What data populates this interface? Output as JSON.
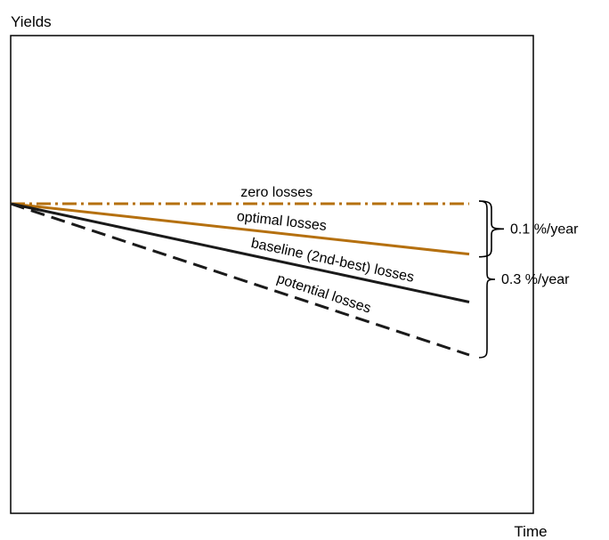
{
  "chart_data": {
    "type": "line",
    "ylabel": "Yields",
    "xlabel": "Time",
    "series": [
      {
        "name": "zero losses",
        "key": "zero",
        "color": "#B5700F",
        "dash": "dashdot",
        "x": [
          0,
          1
        ],
        "y": [
          0,
          0
        ]
      },
      {
        "name": "optimal losses",
        "key": "optimal",
        "color": "#B5700F",
        "dash": "solid",
        "x": [
          0,
          1
        ],
        "y": [
          0,
          -0.1
        ]
      },
      {
        "name": "baseline (2nd-best) losses",
        "key": "baseline",
        "color": "#1a1a1a",
        "dash": "solid",
        "x": [
          0,
          1
        ],
        "y": [
          0,
          -0.195
        ]
      },
      {
        "name": "potential losses",
        "key": "potential",
        "color": "#1a1a1a",
        "dash": "dashed",
        "x": [
          0,
          1
        ],
        "y": [
          0,
          -0.3
        ]
      }
    ],
    "annotations": [
      {
        "key": "brace_small",
        "text": "0.1 %/year",
        "from": 0,
        "to": -0.1
      },
      {
        "key": "brace_large",
        "text": "0.3 %/year",
        "from": 0,
        "to": -0.3
      }
    ],
    "grid": false,
    "legend": "none"
  }
}
